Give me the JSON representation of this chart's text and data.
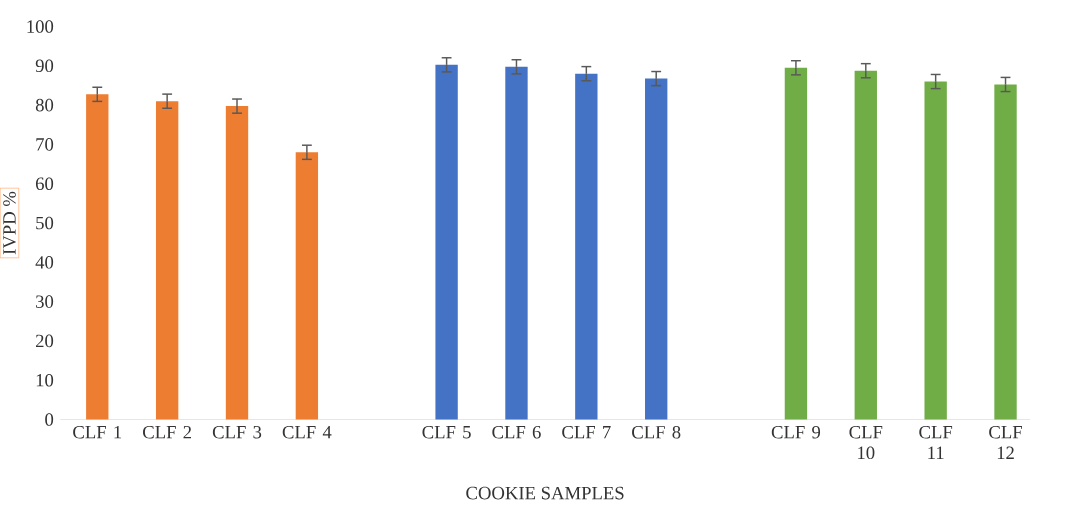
{
  "chart_data": {
    "type": "bar",
    "xlabel": "COOKIE SAMPLES",
    "ylabel": "IVPD %",
    "categories": [
      "CLF 1",
      "CLF 2",
      "CLF 3",
      "CLF 4",
      null,
      "CLF 5",
      "CLF 6",
      "CLF 7",
      "CLF 8",
      null,
      "CLF 9",
      "CLF 10",
      "CLF 11",
      "CLF 12"
    ],
    "values": [
      82.75,
      81,
      79.75,
      68,
      null,
      90.25,
      89.75,
      88,
      86.75,
      null,
      89.5,
      88.75,
      86,
      85.25
    ],
    "errors": [
      1.8,
      1.8,
      1.8,
      1.8,
      null,
      1.8,
      1.8,
      1.8,
      1.8,
      null,
      1.8,
      1.8,
      1.8,
      1.8
    ],
    "colors": [
      "#ed7d31",
      "#ed7d31",
      "#ed7d31",
      "#ed7d31",
      null,
      "#4472c4",
      "#4472c4",
      "#4472c4",
      "#4472c4",
      null,
      "#70ad47",
      "#70ad47",
      "#70ad47",
      "#70ad47"
    ],
    "ylim": [
      0,
      100
    ],
    "yticks": [
      0,
      10,
      20,
      30,
      40,
      50,
      60,
      70,
      80,
      90,
      100
    ],
    "grid": false
  }
}
